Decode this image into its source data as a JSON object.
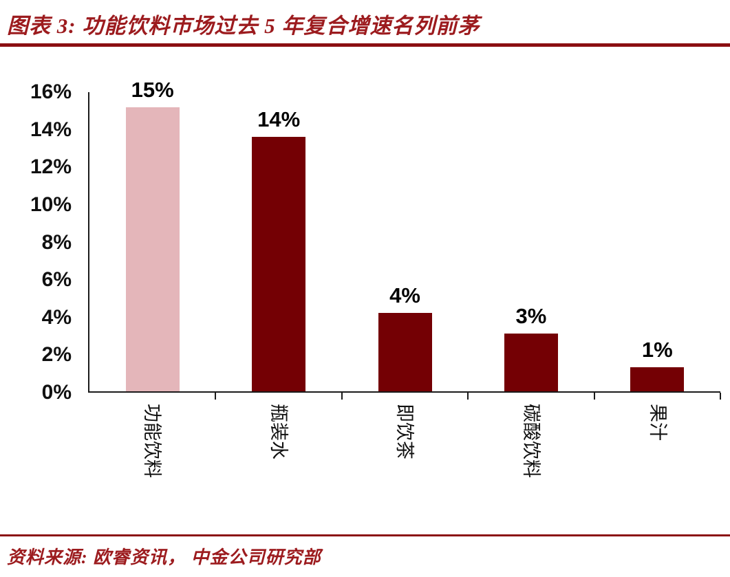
{
  "header": {
    "title": "图表 3:  功能饮料市场过去 5 年复合增速名列前茅"
  },
  "footer": {
    "source": "资料来源: 欧睿资讯， 中金公司研究部"
  },
  "colors": {
    "title_text": "#9C1B1E",
    "rule": "#8B0F12",
    "bar": "#740004",
    "bar_highlight": "#E4B6BA",
    "axis": "#1a1a1a"
  },
  "chart_data": {
    "type": "bar",
    "title": "功能饮料市场过去 5 年复合增速名列前茅",
    "categories": [
      "功能饮料",
      "瓶装水",
      "即饮茶",
      "碳酸饮料",
      "果汁"
    ],
    "values": [
      15.2,
      13.6,
      4.2,
      3.1,
      1.3
    ],
    "data_labels": [
      "15%",
      "14%",
      "4%",
      "3%",
      "1%"
    ],
    "highlight_index": 0,
    "xlabel": "",
    "ylabel": "",
    "ylim": [
      0,
      16
    ],
    "yticks": [
      0,
      2,
      4,
      6,
      8,
      10,
      12,
      14,
      16
    ],
    "ytick_suffix": "%",
    "grid": false,
    "legend": false
  }
}
